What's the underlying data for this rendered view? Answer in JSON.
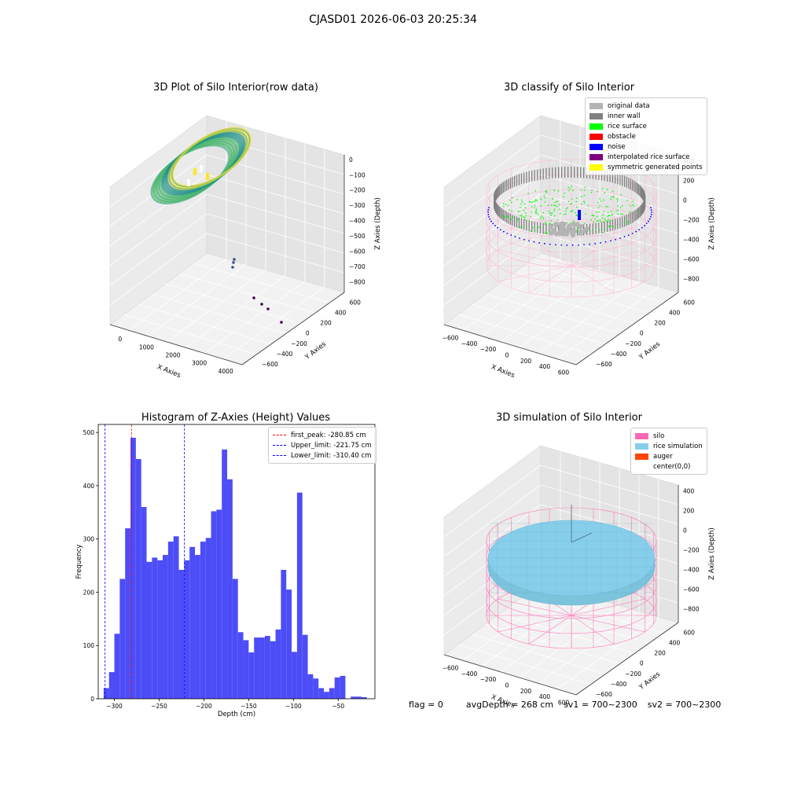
{
  "suptitle": "CJASD01 2026-06-03 20:25:34",
  "status": {
    "flag": "flag = 0",
    "avg_depth": "avgDepth = 268 cm",
    "sv1": "sv1 = 700~2300",
    "sv2": "sv2 = 700~2300"
  },
  "chart_data": [
    {
      "id": "raw",
      "type": "scatter",
      "title": "3D Plot of Silo Interior(row data)",
      "xlabel": "X Axies",
      "ylabel": "Y Axies",
      "zlabel": "Z Axies (Depth)",
      "x_ticks": [
        "0",
        "1000",
        "2000",
        "3000",
        "4000"
      ],
      "y_ticks": [
        "600",
        "400",
        "200",
        "0",
        "−200",
        "−400",
        "−600"
      ],
      "z_ticks": [
        "0",
        "−100",
        "−200",
        "−300",
        "−400",
        "−500",
        "−600",
        "−700",
        "−800"
      ],
      "colormap": [
        "#440154",
        "#3b528b",
        "#21918c",
        "#5ec962",
        "#fde725"
      ]
    },
    {
      "id": "classify",
      "type": "scatter",
      "title": "3D classify of Silo Interior",
      "xlabel": "X Axies",
      "ylabel": "Y Axies",
      "zlabel": "Z Axies (Depth)",
      "x_ticks": [
        "−600",
        "−400",
        "−200",
        "0",
        "200",
        "400",
        "600"
      ],
      "y_ticks": [
        "600",
        "400",
        "200",
        "0",
        "−200",
        "−400",
        "−600"
      ],
      "z_ticks": [
        "400",
        "200",
        "0",
        "−200",
        "−400",
        "−600",
        "−800"
      ],
      "legend": [
        {
          "label": "original data",
          "color": "#b4b4b4"
        },
        {
          "label": "inner wall",
          "color": "#808080"
        },
        {
          "label": "rice surface",
          "color": "#00ff00"
        },
        {
          "label": "obstacle",
          "color": "#ff0000"
        },
        {
          "label": "noise",
          "color": "#0000ff"
        },
        {
          "label": "interpolated rice surface",
          "color": "#800080"
        },
        {
          "label": "symmetric generated points",
          "color": "#ffff00"
        }
      ],
      "silo_color": "#ffb6d5"
    },
    {
      "id": "histogram",
      "type": "bar",
      "title": "Histogram of Z-Axies (Height) Values",
      "xlabel": "Depth (cm)",
      "ylabel": "Frequency",
      "xlim": [
        -318,
        -9
      ],
      "ylim": [
        0,
        515
      ],
      "x_ticks": [
        -300,
        -250,
        -200,
        -150,
        -100,
        -50
      ],
      "y_ticks": [
        0,
        100,
        200,
        300,
        400,
        500
      ],
      "bin_start": -312,
      "bin_width": 6,
      "values": [
        20,
        50,
        122,
        225,
        320,
        490,
        450,
        360,
        257,
        265,
        260,
        270,
        295,
        305,
        242,
        260,
        285,
        270,
        295,
        302,
        352,
        355,
        468,
        412,
        225,
        125,
        110,
        87,
        115,
        115,
        118,
        108,
        130,
        242,
        205,
        88,
        387,
        120,
        46,
        38,
        20,
        13,
        20,
        40,
        43,
        0,
        4,
        4,
        3
      ],
      "bar_color": "#4d4df8",
      "legend_position": "top-right",
      "lines": [
        {
          "label": "first_peak: -280.85 cm",
          "x": -280.85,
          "color": "#ff0000"
        },
        {
          "label": "Upper_limit: -221.75 cm",
          "x": -221.75,
          "color": "#0000ff"
        },
        {
          "label": "Lower_limit: -310.40 cm",
          "x": -310.4,
          "color": "#0000ff"
        }
      ]
    },
    {
      "id": "simulation",
      "type": "scatter",
      "title": "3D simulation of Silo Interior",
      "xlabel": "X Axies",
      "ylabel": "Y Axies",
      "zlabel": "Z Axies (Depth)",
      "x_ticks": [
        "−600",
        "−400",
        "−200",
        "0",
        "200",
        "400",
        "600"
      ],
      "y_ticks": [
        "600",
        "400",
        "200",
        "0",
        "−200",
        "−400",
        "−600"
      ],
      "z_ticks": [
        "400",
        "200",
        "0",
        "−200",
        "−400",
        "−600",
        "−800"
      ],
      "legend": [
        {
          "label": "silo",
          "color": "#ff69b4"
        },
        {
          "label": "rice simulation",
          "color": "#87ceeb"
        },
        {
          "label": "auger",
          "color": "#ff4500"
        },
        {
          "label": "center(0,0)",
          "color": "#ffffff"
        }
      ],
      "silo_color": "#ff69b4",
      "rice_color": "#87ceeb"
    }
  ]
}
